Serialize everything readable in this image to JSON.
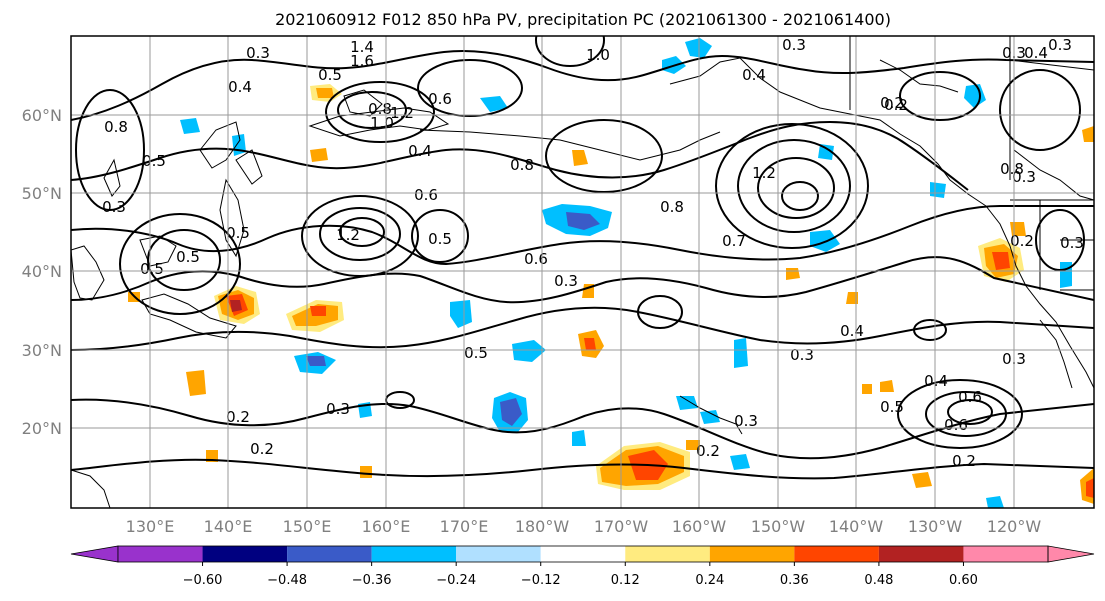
{
  "title": "2021060912 F012 850 hPa PV, precipitation PC (2021061300 - 2021061400)",
  "lon_labels": [
    "130°E",
    "140°E",
    "150°E",
    "160°E",
    "170°E",
    "180°W",
    "170°W",
    "160°W",
    "150°W",
    "140°W",
    "130°W",
    "120°W"
  ],
  "lat_labels": [
    "60°N",
    "50°N",
    "40°N",
    "30°N",
    "20°N"
  ],
  "colorbar": {
    "colors": [
      "#9932cc",
      "#000080",
      "#3a5bc8",
      "#00bfff",
      "#b0e0ff",
      "#ffffff",
      "#ffeb80",
      "#ffa500",
      "#ff4500",
      "#b22222",
      "#ff88aa"
    ],
    "tick_labels": [
      "−0.60",
      "−0.48",
      "−0.36",
      "−0.24",
      "−0.12",
      "0.12",
      "0.24",
      "0.36",
      "0.48",
      "0.60"
    ]
  },
  "contour_labels": [
    "0.3",
    "1.4",
    "1.6",
    "1.0",
    "0.3",
    "0.4",
    "0.3",
    "0.4",
    "0.2",
    "0.4",
    "0.5",
    "0.6",
    "0.8",
    "1.0",
    "1.2",
    "0.4",
    "0.8",
    "0.5",
    "1.2",
    "0.8",
    "0.6",
    "0.5",
    "1.2",
    "0.8",
    "0.7",
    "0.3",
    "0.6",
    "0.3",
    "0.5",
    "0.5",
    "0.4",
    "0.5",
    "0.3",
    "0.3",
    "0.2",
    "0.4",
    "0.2",
    "0.6",
    "0.3",
    "0.5",
    "0.3",
    "0.6",
    "0.2",
    "0.8",
    "0.2",
    "0.3",
    "0.2",
    "0.3",
    "0.5",
    "0.2",
    "0.3"
  ]
}
